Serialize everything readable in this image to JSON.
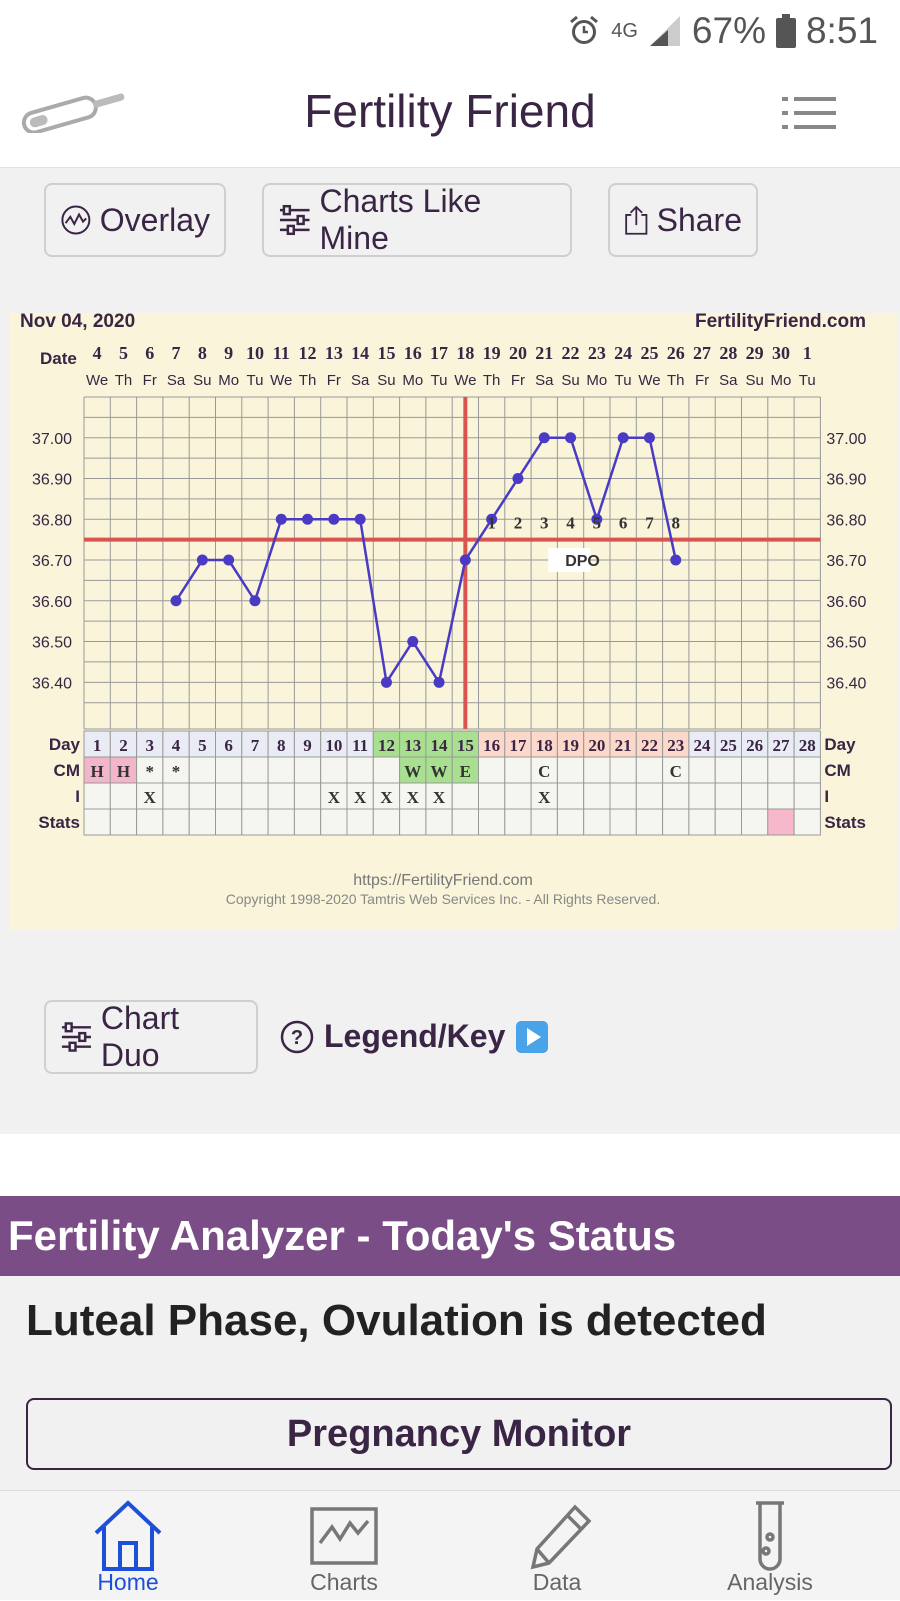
{
  "statusbar": {
    "network": "4G",
    "battery": "67%",
    "time": "8:51"
  },
  "app": {
    "title": "Fertility Friend"
  },
  "toolbar": {
    "overlay_label": "Overlay",
    "charts_like_mine_label": "Charts Like Mine",
    "share_label": "Share"
  },
  "chart": {
    "date_label": "Nov 04, 2020",
    "site": "FertilityFriend.com",
    "date_row_label": "Date",
    "dates": [
      "4",
      "5",
      "6",
      "7",
      "8",
      "9",
      "10",
      "11",
      "12",
      "13",
      "14",
      "15",
      "16",
      "17",
      "18",
      "19",
      "20",
      "21",
      "22",
      "23",
      "24",
      "25",
      "26",
      "27",
      "28",
      "29",
      "30",
      "1"
    ],
    "weekdays": [
      "We",
      "Th",
      "Fr",
      "Sa",
      "Su",
      "Mo",
      "Tu",
      "We",
      "Th",
      "Fr",
      "Sa",
      "Su",
      "Mo",
      "Tu",
      "We",
      "Th",
      "Fr",
      "Sa",
      "Su",
      "Mo",
      "Tu",
      "We",
      "Th",
      "Fr",
      "Sa",
      "Su",
      "Mo",
      "Tu"
    ],
    "y_ticks": [
      "37.00",
      "36.90",
      "36.80",
      "36.70",
      "36.60",
      "36.50",
      "36.40"
    ],
    "dpo_label": "DPO",
    "dpo_numbers": [
      "1",
      "2",
      "3",
      "4",
      "5",
      "6",
      "7",
      "8"
    ],
    "row_labels": {
      "day": "Day",
      "cm": "CM",
      "i": "I",
      "stats": "Stats"
    },
    "days": [
      "1",
      "2",
      "3",
      "4",
      "5",
      "6",
      "7",
      "8",
      "9",
      "10",
      "11",
      "12",
      "13",
      "14",
      "15",
      "16",
      "17",
      "18",
      "19",
      "20",
      "21",
      "22",
      "23",
      "24",
      "25",
      "26",
      "27",
      "28"
    ],
    "cm": [
      "H",
      "H",
      "*",
      "*",
      "",
      "",
      "",
      "",
      "",
      "",
      "",
      "",
      "W",
      "W",
      "E",
      "",
      "",
      "C",
      "",
      "",
      "",
      "",
      "C",
      "",
      "",
      "",
      "",
      ""
    ],
    "intercourse": [
      "",
      "",
      "X",
      "",
      "",
      "",
      "",
      "",
      "",
      "X",
      "X",
      "X",
      "X",
      "X",
      "",
      "",
      "",
      "X",
      "",
      "",
      "",
      "",
      "",
      "",
      "",
      "",
      "",
      ""
    ],
    "footer_url": "https://FertilityFriend.com",
    "copyright": "Copyright 1998-2020 Tamtris Web Services Inc. - All Rights Reserved."
  },
  "chart_data": {
    "type": "line",
    "x": [
      1,
      2,
      3,
      4,
      5,
      6,
      7,
      8,
      9,
      10,
      11,
      12,
      13,
      14,
      15,
      16,
      17,
      18,
      19,
      20,
      21,
      22,
      23,
      24,
      25,
      26,
      27,
      28
    ],
    "series": [
      {
        "values": [
          null,
          null,
          null,
          36.6,
          36.7,
          36.7,
          36.6,
          36.8,
          36.8,
          36.8,
          36.8,
          36.4,
          36.5,
          36.4,
          36.7,
          36.8,
          36.9,
          37.0,
          37.0,
          36.8,
          37.0,
          37.0,
          36.7,
          null,
          null,
          null,
          null,
          null
        ]
      }
    ],
    "ylim": [
      36.31,
      37.1
    ],
    "coverline": 36.75,
    "ovulation_day": 15,
    "grid": true,
    "colors": {
      "line": "#4a3bc4",
      "coverline": "#d9534f",
      "ovulation": "#d9534f",
      "fertile": "#a8e08f",
      "cm_sticky": "#f2b5c9",
      "luteal": "#fbd8c9",
      "stats_pink": "#f7b8cc"
    }
  },
  "secondary": {
    "chart_duo_label": "Chart Duo",
    "legend_label": "Legend/Key"
  },
  "analyzer": {
    "header": "Fertility Analyzer - Today's Status",
    "status": "Luteal Phase, Ovulation is detected",
    "pregnancy_monitor_label": "Pregnancy Monitor"
  },
  "nav": [
    {
      "label": "Home",
      "icon": "home-icon",
      "active": true
    },
    {
      "label": "Charts",
      "icon": "chart-icon",
      "active": false
    },
    {
      "label": "Data",
      "icon": "pencil-icon",
      "active": false
    },
    {
      "label": "Analysis",
      "icon": "test-tube-icon",
      "active": false
    }
  ]
}
